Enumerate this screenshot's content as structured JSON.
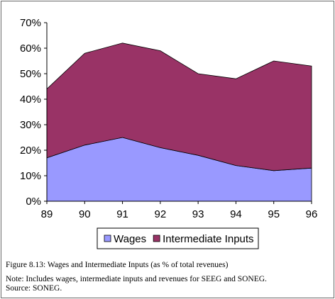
{
  "chart_data": {
    "type": "area",
    "stacked": true,
    "categories": [
      "89",
      "90",
      "91",
      "92",
      "93",
      "94",
      "95",
      "96"
    ],
    "series": [
      {
        "name": "Wages",
        "values": [
          17,
          22,
          25,
          21,
          18,
          14,
          12,
          13
        ],
        "color": "#9999ff"
      },
      {
        "name": "Intermediate Inputs",
        "values": [
          27,
          36,
          37,
          38,
          32,
          34,
          43,
          40
        ],
        "color": "#993366"
      }
    ],
    "y_ticks": [
      "0%",
      "10%",
      "20%",
      "30%",
      "40%",
      "50%",
      "60%",
      "70%"
    ],
    "ylim": [
      0,
      70
    ],
    "legend_position": "bottom",
    "grid": false
  },
  "caption": {
    "figure": "Figure 8.13: Wages and Intermediate Inputs (as % of total revenues)",
    "note": "Note:  Includes wages, intermediate inputs and revenues for SEEG and SONEG.",
    "source": "Source: SONEG."
  }
}
